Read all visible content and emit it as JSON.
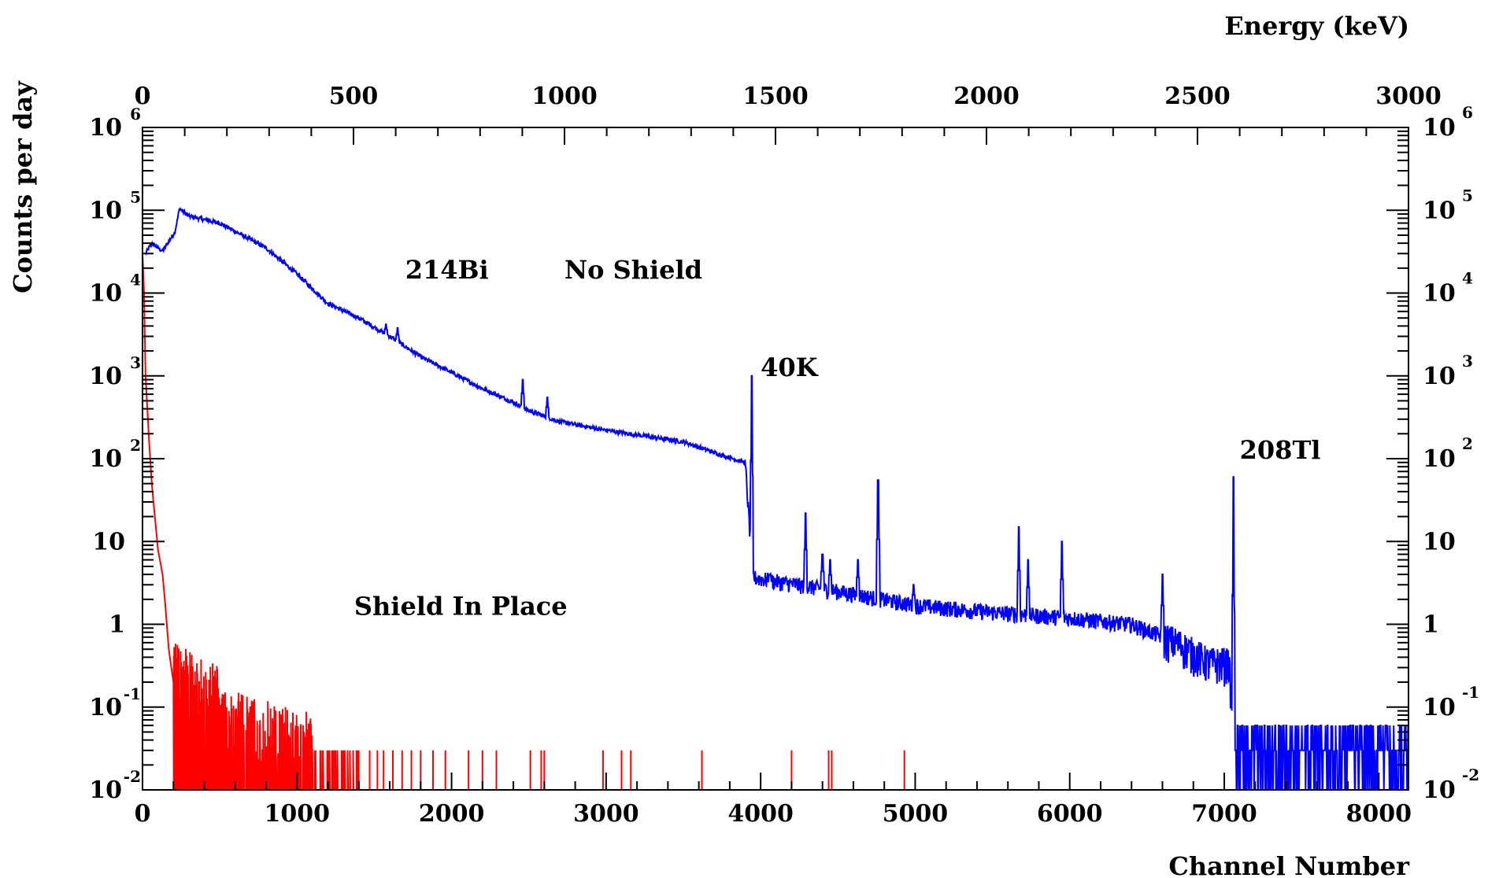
{
  "chart_data": {
    "type": "line",
    "ylabel": "Counts per day",
    "xlabel": "Channel Number",
    "x2label": "Energy (keV)",
    "xlim": [
      0,
      8192
    ],
    "x2lim": [
      0,
      3000
    ],
    "ylim": [
      0.01,
      1000000
    ],
    "yscale": "log",
    "grid": false,
    "x_ticks": [
      "0",
      "1000",
      "2000",
      "3000",
      "4000",
      "5000",
      "6000",
      "7000",
      "8000"
    ],
    "x2_ticks": [
      "0",
      "500",
      "1000",
      "1500",
      "2000",
      "2500",
      "3000"
    ],
    "y_ticks": [
      {
        "value": 1000000,
        "base": "10",
        "exp": "6"
      },
      {
        "value": 100000,
        "base": "10",
        "exp": "5"
      },
      {
        "value": 10000,
        "base": "10",
        "exp": "4"
      },
      {
        "value": 1000,
        "base": "10",
        "exp": "3"
      },
      {
        "value": 100,
        "base": "10",
        "exp": "2"
      },
      {
        "value": 10,
        "base": "10",
        "exp": ""
      },
      {
        "value": 1,
        "base": "1",
        "exp": ""
      },
      {
        "value": 0.1,
        "base": "10",
        "exp": "-1"
      },
      {
        "value": 0.01,
        "base": "10",
        "exp": "-2"
      }
    ],
    "annotations": [
      {
        "text": "214Bi",
        "x": 1700,
        "y": 15000
      },
      {
        "text": "No Shield",
        "x": 2730,
        "y": 15000
      },
      {
        "text": "40K",
        "x": 4000,
        "y": 1000
      },
      {
        "text": "208Tl",
        "x": 7100,
        "y": 100
      },
      {
        "text": "Shield In Place",
        "x": 1370,
        "y": 1.3
      }
    ],
    "series": [
      {
        "color": "#0000ff",
        "continuum": [
          [
            20,
            30000
          ],
          [
            60,
            40000
          ],
          [
            130,
            32000
          ],
          [
            210,
            55000
          ],
          [
            240,
            105000
          ],
          [
            300,
            85000
          ],
          [
            500,
            70000
          ],
          [
            800,
            35000
          ],
          [
            1000,
            17000
          ],
          [
            1200,
            7500
          ],
          [
            1400,
            5000
          ],
          [
            1600,
            3000
          ],
          [
            1800,
            1700
          ],
          [
            2000,
            1100
          ],
          [
            2200,
            700
          ],
          [
            2400,
            480
          ],
          [
            2500,
            380
          ],
          [
            2700,
            280
          ],
          [
            3000,
            220
          ],
          [
            3500,
            160
          ],
          [
            3750,
            110
          ],
          [
            3900,
            90
          ],
          [
            3950,
            3.7
          ],
          [
            4100,
            3.3
          ],
          [
            4500,
            2.5
          ],
          [
            5000,
            1.7
          ],
          [
            5500,
            1.4
          ],
          [
            6000,
            1.2
          ],
          [
            6400,
            1.0
          ],
          [
            6700,
            0.6
          ],
          [
            6900,
            0.35
          ],
          [
            7030,
            0.35
          ],
          [
            7070,
            0.03
          ],
          [
            8192,
            0.03
          ]
        ],
        "peaks": [
          [
            646,
            45000
          ],
          [
            806,
            12000
          ],
          [
            888,
            7000
          ],
          [
            951,
            10000
          ],
          [
            1011,
            12000
          ],
          [
            1109,
            5000
          ],
          [
            1265,
            2500
          ],
          [
            1380,
            2800
          ],
          [
            1575,
            4200
          ],
          [
            1650,
            3800
          ],
          [
            1800,
            750
          ],
          [
            1960,
            550
          ],
          [
            2065,
            280
          ],
          [
            2140,
            300
          ],
          [
            2270,
            230
          ],
          [
            2335,
            280
          ],
          [
            2460,
            900
          ],
          [
            2515,
            170
          ],
          [
            2620,
            550
          ],
          [
            3020,
            220
          ],
          [
            3120,
            40
          ],
          [
            3350,
            80
          ],
          [
            3470,
            40
          ],
          [
            3730,
            40
          ],
          [
            3790,
            30
          ],
          [
            3943,
            1000
          ],
          [
            4060,
            4
          ],
          [
            4290,
            22
          ],
          [
            4400,
            7
          ],
          [
            4450,
            6
          ],
          [
            4630,
            6
          ],
          [
            4760,
            55
          ],
          [
            4990,
            3
          ],
          [
            5670,
            15
          ],
          [
            5730,
            6
          ],
          [
            5950,
            10
          ],
          [
            6600,
            4
          ],
          [
            7060,
            60
          ]
        ]
      },
      {
        "color": "#ff0000",
        "continuum": [
          [
            0,
            30000
          ],
          [
            10,
            10000
          ],
          [
            20,
            1000
          ],
          [
            40,
            200
          ],
          [
            60,
            50
          ],
          [
            80,
            20
          ],
          [
            100,
            8
          ],
          [
            130,
            4
          ],
          [
            150,
            1.5
          ],
          [
            170,
            0.5
          ],
          [
            200,
            0.2
          ],
          [
            400,
            0.12
          ],
          [
            600,
            0.09
          ],
          [
            900,
            0.06
          ],
          [
            1100,
            0.05
          ],
          [
            1400,
            0.04
          ]
        ],
        "isolated_counts_x": [
          1470,
          1520,
          1560,
          1620,
          1680,
          1740,
          1800,
          1880,
          1960,
          2110,
          2200,
          2290,
          2510,
          2580,
          2600,
          2980,
          3100,
          3160,
          3620,
          4200,
          4440,
          4460,
          4930
        ]
      }
    ]
  }
}
